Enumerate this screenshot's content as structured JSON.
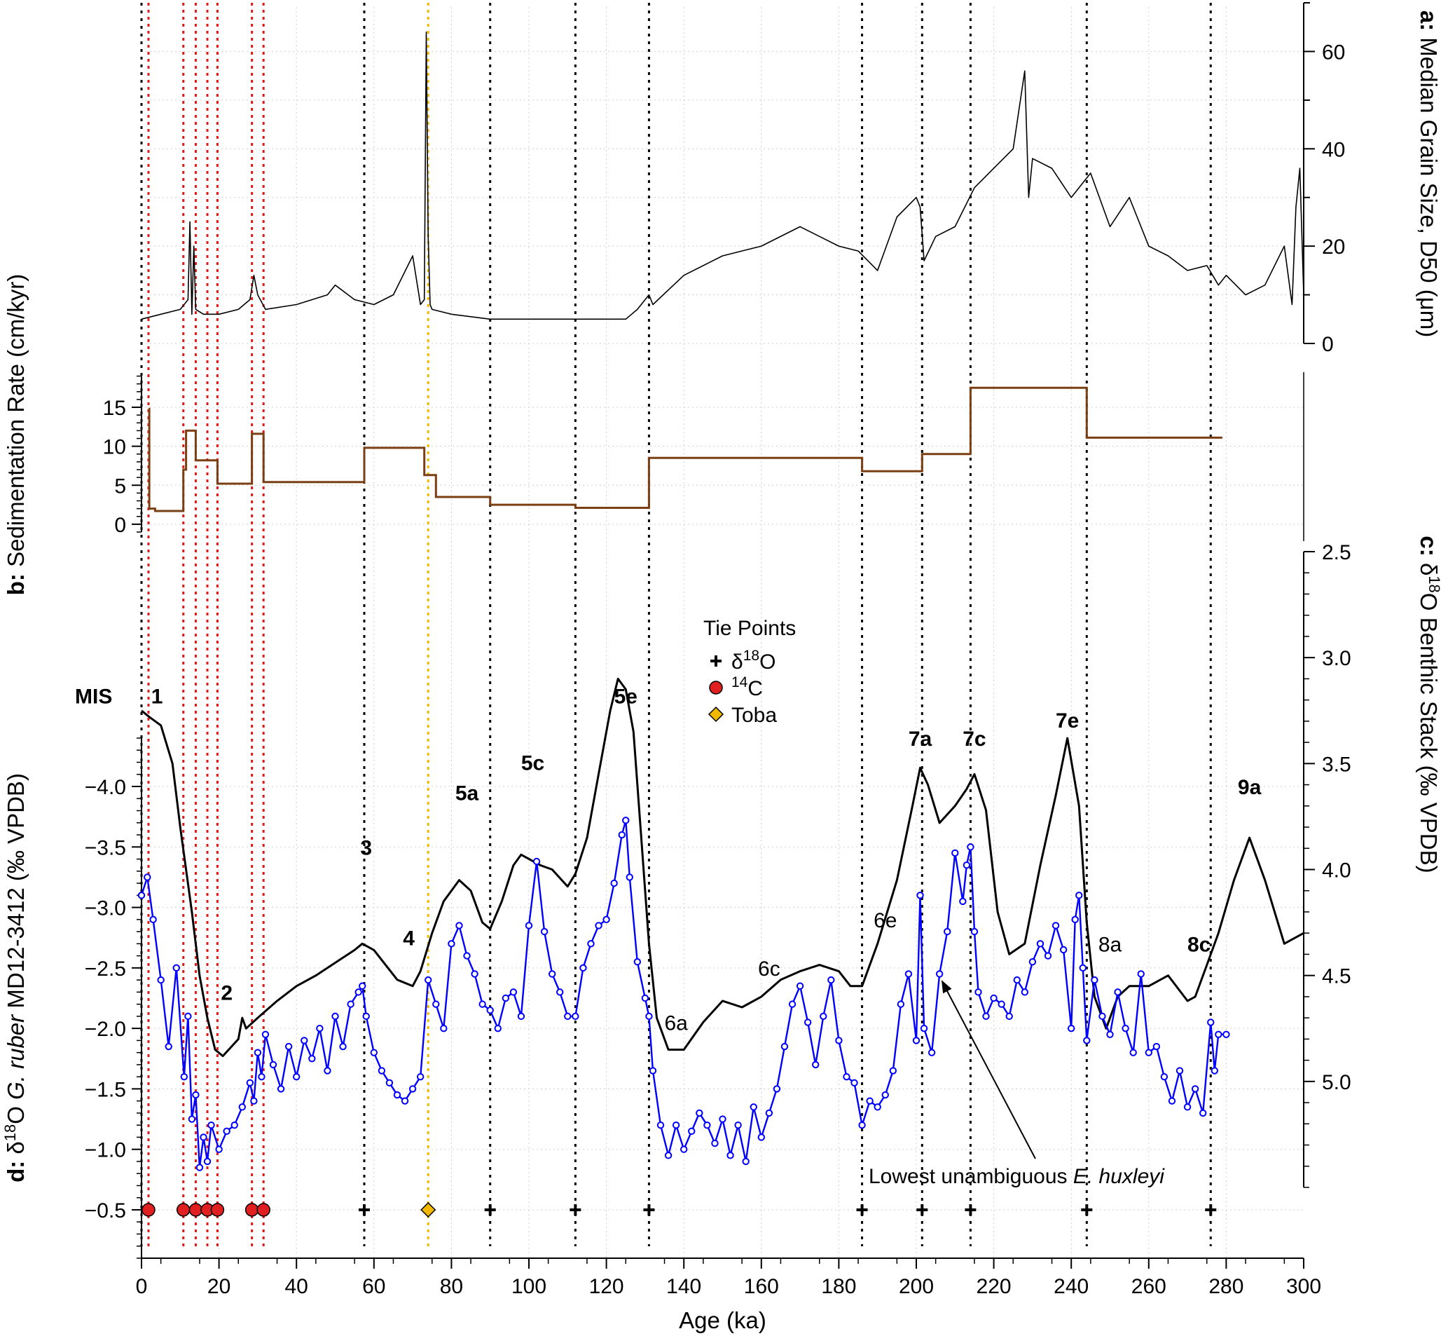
{
  "chart_data": {
    "type": "line",
    "title": "",
    "xlabel": "Age (ka)",
    "xlim": [
      0,
      300
    ],
    "x_ticks": [
      "0",
      "20",
      "40",
      "60",
      "80",
      "100",
      "120",
      "140",
      "160",
      "180",
      "200",
      "220",
      "240",
      "260",
      "280",
      "300"
    ],
    "panels": {
      "a": {
        "ylabel_prefix": "a:",
        "ylabel": "Median Grain Size, D50 (μm)",
        "ylim": [
          0,
          70
        ],
        "y_ticks": [
          "0",
          "20",
          "40",
          "60"
        ],
        "series": [
          {
            "name": "Median Grain Size, D50",
            "color": "#000000",
            "x": [
              0,
              5,
              10,
              12,
              12.5,
              13,
              13.5,
              14,
              16,
              20,
              25,
              28,
              29,
              30,
              32,
              40,
              48,
              50,
              55,
              60,
              65,
              70,
              72,
              73,
              73.5,
              74,
              74.5,
              75,
              80,
              90,
              100,
              110,
              120,
              125,
              128,
              130,
              131,
              132,
              140,
              150,
              160,
              170,
              175,
              180,
              185,
              190,
              195,
              200,
              201,
              202,
              205,
              210,
              215,
              220,
              225,
              228,
              229,
              230,
              235,
              240,
              245,
              250,
              255,
              260,
              265,
              270,
              275,
              278,
              280,
              285,
              290,
              295,
              297,
              298,
              299,
              300
            ],
            "values": [
              5,
              6,
              7,
              9,
              25,
              6,
              20,
              7,
              6,
              6,
              7,
              9,
              14,
              10,
              7,
              8,
              10,
              12,
              9,
              8,
              10,
              18,
              8,
              9,
              64,
              22,
              8,
              7,
              6,
              5,
              5,
              5,
              5,
              5,
              7,
              9,
              10,
              8,
              14,
              18,
              20,
              24,
              22,
              20,
              19,
              15,
              26,
              30,
              28,
              17,
              22,
              24,
              32,
              36,
              40,
              56,
              30,
              38,
              36,
              30,
              35,
              24,
              30,
              20,
              18,
              15,
              16,
              12,
              14,
              10,
              12,
              20,
              8,
              28,
              36,
              10
            ]
          }
        ]
      },
      "b": {
        "ylabel_prefix": "b:",
        "ylabel": "Sedimentation Rate (cm/kyr)",
        "ylim": [
          -1,
          19.5
        ],
        "y_ticks": [
          "0",
          "5",
          "10",
          "15"
        ],
        "series": [
          {
            "name": "Sedimentation Rate",
            "color": "#7b3f14",
            "x": [
              1.8,
              2.0,
              3.5,
              10.8,
              11.5,
              14.0,
              19.6,
              28.5,
              31.5,
              57.5,
              73.0,
              76.0,
              90.0,
              112.0,
              131.0,
              186.0,
              201.5,
              214.0,
              244.0,
              279.0
            ],
            "values": [
              14.8,
              2.0,
              1.7,
              7.0,
              12.0,
              8.2,
              5.2,
              11.6,
              5.4,
              9.8,
              6.3,
              3.5,
              2.5,
              2.1,
              8.5,
              6.8,
              9.0,
              17.5,
              11.1,
              11.1
            ]
          }
        ]
      },
      "c": {
        "ylabel_prefix": "c:",
        "ylabel": "δ18O Benthic Stack (‰ VPDB)",
        "ylim": [
          2.5,
          5.5
        ],
        "y_ticks": [
          "2.5",
          "3.0",
          "3.5",
          "4.0",
          "4.5",
          "5.0"
        ],
        "series": [
          {
            "name": "δ18O Benthic Stack",
            "color": "#000000",
            "x": [
              0,
              2,
              5,
              8,
              10,
              13,
              15,
              17,
              19,
              21,
              23,
              25,
              26,
              27,
              30,
              35,
              40,
              45,
              50,
              55,
              57,
              60,
              63,
              66,
              70,
              72,
              75,
              78,
              82,
              85,
              88,
              90,
              93,
              96,
              98,
              100,
              103,
              106,
              110,
              112,
              115,
              118,
              121,
              123,
              125,
              127,
              129,
              131,
              133,
              136,
              140,
              145,
              150,
              155,
              160,
              165,
              170,
              175,
              180,
              183,
              186,
              190,
              195,
              199,
              201,
              203,
              206,
              210,
              213,
              215,
              218,
              221,
              224,
              228,
              232,
              236,
              239,
              242,
              244,
              246,
              249,
              252,
              255,
              260,
              265,
              270,
              272,
              275,
              278,
              282,
              286,
              290,
              295,
              300
            ],
            "values": [
              3.25,
              3.28,
              3.32,
              3.5,
              3.8,
              4.2,
              4.5,
              4.7,
              4.85,
              4.88,
              4.84,
              4.8,
              4.7,
              4.75,
              4.7,
              4.62,
              4.55,
              4.5,
              4.44,
              4.38,
              4.35,
              4.38,
              4.45,
              4.52,
              4.55,
              4.48,
              4.3,
              4.15,
              4.05,
              4.1,
              4.25,
              4.28,
              4.15,
              3.98,
              3.93,
              3.95,
              3.98,
              4.0,
              4.08,
              4.02,
              3.85,
              3.55,
              3.25,
              3.1,
              3.15,
              3.35,
              3.85,
              4.35,
              4.7,
              4.85,
              4.85,
              4.72,
              4.62,
              4.65,
              4.6,
              4.52,
              4.48,
              4.45,
              4.48,
              4.55,
              4.55,
              4.35,
              4.05,
              3.7,
              3.52,
              3.6,
              3.78,
              3.7,
              3.62,
              3.55,
              3.72,
              4.2,
              4.4,
              4.35,
              3.98,
              3.65,
              3.38,
              3.7,
              4.25,
              4.6,
              4.75,
              4.6,
              4.55,
              4.55,
              4.5,
              4.62,
              4.6,
              4.45,
              4.3,
              4.05,
              3.85,
              4.05,
              4.35,
              4.3
            ]
          }
        ]
      },
      "d": {
        "ylabel_prefix": "d:",
        "ylabel": "δ18O G. ruber MD12-3412 (‰ VPDB)",
        "ylim": [
          -4.4,
          -0.1
        ],
        "y_ticks": [
          "-4.0",
          "-3.5",
          "-3.0",
          "-2.5",
          "-2.0",
          "-1.5",
          "-1.0",
          "-0.5"
        ],
        "series": [
          {
            "name": "δ18O G. ruber MD12-3412",
            "color": "#0000ff",
            "marker": "open-circle",
            "x": [
              0,
              1.5,
              3,
              5,
              7,
              9,
              11,
              12,
              13,
              14,
              15,
              16,
              17,
              18,
              20,
              22,
              24,
              26,
              28,
              29,
              30,
              31,
              32,
              34,
              36,
              38,
              40,
              42,
              44,
              46,
              48,
              50,
              52,
              54,
              56,
              57,
              58,
              60,
              62,
              64,
              66,
              68,
              70,
              72,
              74,
              76,
              78,
              80,
              82,
              84,
              86,
              88,
              90,
              92,
              94,
              96,
              98,
              100,
              102,
              104,
              106,
              108,
              110,
              112,
              114,
              116,
              118,
              120,
              122,
              124,
              125,
              126,
              128,
              130,
              131,
              132,
              134,
              136,
              138,
              140,
              142,
              144,
              146,
              148,
              150,
              152,
              154,
              156,
              158,
              160,
              162,
              164,
              166,
              168,
              170,
              172,
              174,
              176,
              178,
              180,
              182,
              184,
              186,
              188,
              190,
              192,
              194,
              196,
              198,
              200,
              201,
              202,
              204,
              206,
              208,
              210,
              212,
              213,
              214,
              215,
              216,
              218,
              220,
              222,
              224,
              226,
              228,
              230,
              232,
              234,
              236,
              238,
              240,
              241,
              242,
              243,
              244,
              246,
              248,
              250,
              252,
              254,
              256,
              258,
              260,
              262,
              264,
              266,
              268,
              270,
              272,
              274,
              276,
              277,
              278,
              280
            ],
            "values": [
              -3.1,
              -3.25,
              -2.9,
              -2.4,
              -1.85,
              -2.5,
              -1.6,
              -2.1,
              -1.25,
              -1.45,
              -0.85,
              -1.1,
              -0.9,
              -1.2,
              -1.0,
              -1.15,
              -1.2,
              -1.35,
              -1.55,
              -1.4,
              -1.8,
              -1.6,
              -1.95,
              -1.7,
              -1.5,
              -1.85,
              -1.6,
              -1.9,
              -1.75,
              -2.0,
              -1.65,
              -2.1,
              -1.85,
              -2.2,
              -2.3,
              -2.35,
              -2.1,
              -1.8,
              -1.65,
              -1.55,
              -1.45,
              -1.4,
              -1.5,
              -1.6,
              -2.4,
              -2.2,
              -2.0,
              -2.7,
              -2.85,
              -2.6,
              -2.45,
              -2.2,
              -2.15,
              -2.0,
              -2.25,
              -2.3,
              -2.1,
              -2.85,
              -3.38,
              -2.8,
              -2.45,
              -2.3,
              -2.1,
              -2.1,
              -2.5,
              -2.7,
              -2.85,
              -2.9,
              -3.2,
              -3.6,
              -3.72,
              -3.25,
              -2.55,
              -2.25,
              -2.1,
              -1.65,
              -1.2,
              -0.95,
              -1.2,
              -1.0,
              -1.15,
              -1.3,
              -1.2,
              -1.05,
              -1.25,
              -0.95,
              -1.2,
              -0.9,
              -1.35,
              -1.1,
              -1.3,
              -1.5,
              -1.85,
              -2.2,
              -2.35,
              -2.05,
              -1.7,
              -2.1,
              -2.4,
              -1.9,
              -1.6,
              -1.55,
              -1.2,
              -1.4,
              -1.35,
              -1.45,
              -1.65,
              -2.2,
              -2.45,
              -1.9,
              -3.1,
              -2.0,
              -1.8,
              -2.45,
              -2.8,
              -3.45,
              -3.05,
              -3.35,
              -3.5,
              -2.8,
              -2.3,
              -2.1,
              -2.25,
              -2.2,
              -2.1,
              -2.4,
              -2.3,
              -2.55,
              -2.7,
              -2.6,
              -2.85,
              -2.65,
              -2.0,
              -2.9,
              -3.1,
              -2.5,
              -1.9,
              -2.4,
              -2.1,
              -1.95,
              -2.3,
              -2.0,
              -1.8,
              -2.45,
              -1.8,
              -1.85,
              -1.6,
              -1.4,
              -1.65,
              -1.35,
              -1.5,
              -1.3,
              -2.05,
              -1.65,
              -1.95,
              -1.95
            ]
          }
        ]
      }
    },
    "vertical_lines": {
      "red_14C": [
        1.8,
        10.8,
        14.0,
        17.0,
        19.6,
        28.5,
        31.5
      ],
      "black_d18O": [
        0,
        57.5,
        90.0,
        112.0,
        131.0,
        186.0,
        201.5,
        214.0,
        244.0,
        276.0
      ],
      "gold_toba": [
        74.0
      ]
    },
    "tie_points": {
      "c14": [
        1.8,
        10.8,
        14.0,
        17.0,
        19.6,
        28.5,
        31.5
      ],
      "d18O": [
        57.5,
        90.0,
        112.0,
        131.0,
        186.0,
        201.5,
        214.0,
        244.0,
        276.0
      ],
      "toba": [
        74.0
      ],
      "y_value": -0.5
    },
    "mis_label": "MIS",
    "mis_labels": [
      {
        "text": "1",
        "x": 4,
        "yd": -4.75,
        "bold": true
      },
      {
        "text": "2",
        "x": 22,
        "yd": -2.3,
        "bold": true
      },
      {
        "text": "3",
        "x": 58,
        "yd": -3.5,
        "bold": true
      },
      {
        "text": "4",
        "x": 69,
        "yd": -2.75,
        "bold": true
      },
      {
        "text": "5a",
        "x": 84,
        "yd": -3.95,
        "bold": true
      },
      {
        "text": "5c",
        "x": 101,
        "yd": -4.2,
        "bold": true
      },
      {
        "text": "5e",
        "x": 125,
        "yd": -4.75,
        "bold": true
      },
      {
        "text": "6a",
        "x": 138,
        "yd": -2.05,
        "bold": false
      },
      {
        "text": "6c",
        "x": 162,
        "yd": -2.5,
        "bold": false
      },
      {
        "text": "6e",
        "x": 192,
        "yd": -2.9,
        "bold": false
      },
      {
        "text": "7a",
        "x": 201,
        "yd": -4.4,
        "bold": true
      },
      {
        "text": "7c",
        "x": 215,
        "yd": -4.4,
        "bold": true
      },
      {
        "text": "7e",
        "x": 239,
        "yd": -4.55,
        "bold": true
      },
      {
        "text": "8a",
        "x": 250,
        "yd": -2.7,
        "bold": false
      },
      {
        "text": "8c",
        "x": 273,
        "yd": -2.7,
        "bold": true
      },
      {
        "text": "9a",
        "x": 286,
        "yd": -4.0,
        "bold": true
      }
    ],
    "legend": {
      "title": "Tie Points",
      "entries": [
        {
          "label": "δ18O",
          "marker": "plus",
          "color": "#000000"
        },
        {
          "label": "14C",
          "marker": "circle",
          "color": "#e02020"
        },
        {
          "label": "Toba",
          "marker": "diamond",
          "color": "#f0b800"
        }
      ]
    },
    "annotation": {
      "text_prefix": "Lowest unambiguous ",
      "text_italic": "E. huxleyi",
      "arrow_to_x": 206.5,
      "arrow_to_yd": -2.4
    }
  }
}
